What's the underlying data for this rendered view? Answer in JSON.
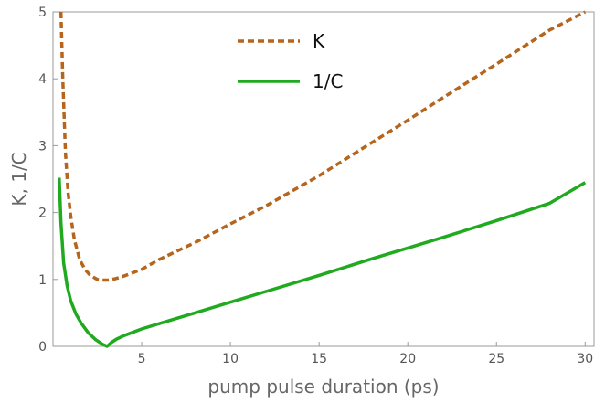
{
  "chart_data": {
    "type": "line",
    "title": "",
    "xlabel": "pump pulse duration (ps)",
    "ylabel": "K, 1/C",
    "xlim": [
      0,
      30.5
    ],
    "ylim": [
      0,
      5
    ],
    "xticks": [
      5,
      10,
      15,
      20,
      25,
      30
    ],
    "yticks": [
      0,
      1,
      2,
      3,
      4,
      5
    ],
    "grid": false,
    "legend_position": "top-center",
    "series": [
      {
        "name": "K",
        "color": "#b5651d",
        "style": "dashed",
        "x": [
          0.45,
          0.55,
          0.7,
          0.85,
          1.0,
          1.2,
          1.5,
          1.8,
          2.1,
          2.5,
          2.8,
          3.1,
          3.5,
          4,
          5,
          6,
          8,
          10,
          12,
          15,
          18,
          20,
          22,
          25,
          28,
          30
        ],
        "y": [
          5.0,
          4.0,
          2.9,
          2.3,
          1.95,
          1.6,
          1.3,
          1.15,
          1.06,
          1.0,
          0.99,
          0.99,
          1.01,
          1.05,
          1.15,
          1.3,
          1.55,
          1.83,
          2.1,
          2.55,
          3.05,
          3.38,
          3.72,
          4.22,
          4.73,
          5.0
        ]
      },
      {
        "name": "1/C",
        "color": "#1faa1f",
        "style": "solid",
        "x": [
          0.35,
          0.45,
          0.6,
          0.8,
          1.0,
          1.3,
          1.6,
          2.0,
          2.4,
          2.8,
          3.05,
          3.3,
          3.6,
          4,
          5,
          6,
          8,
          10,
          12,
          15,
          18,
          20,
          22,
          25,
          28,
          30
        ],
        "y": [
          2.52,
          1.85,
          1.25,
          0.9,
          0.68,
          0.48,
          0.34,
          0.2,
          0.1,
          0.03,
          0.0,
          0.06,
          0.11,
          0.16,
          0.26,
          0.34,
          0.5,
          0.66,
          0.82,
          1.06,
          1.31,
          1.47,
          1.63,
          1.88,
          2.14,
          2.45
        ]
      }
    ]
  }
}
